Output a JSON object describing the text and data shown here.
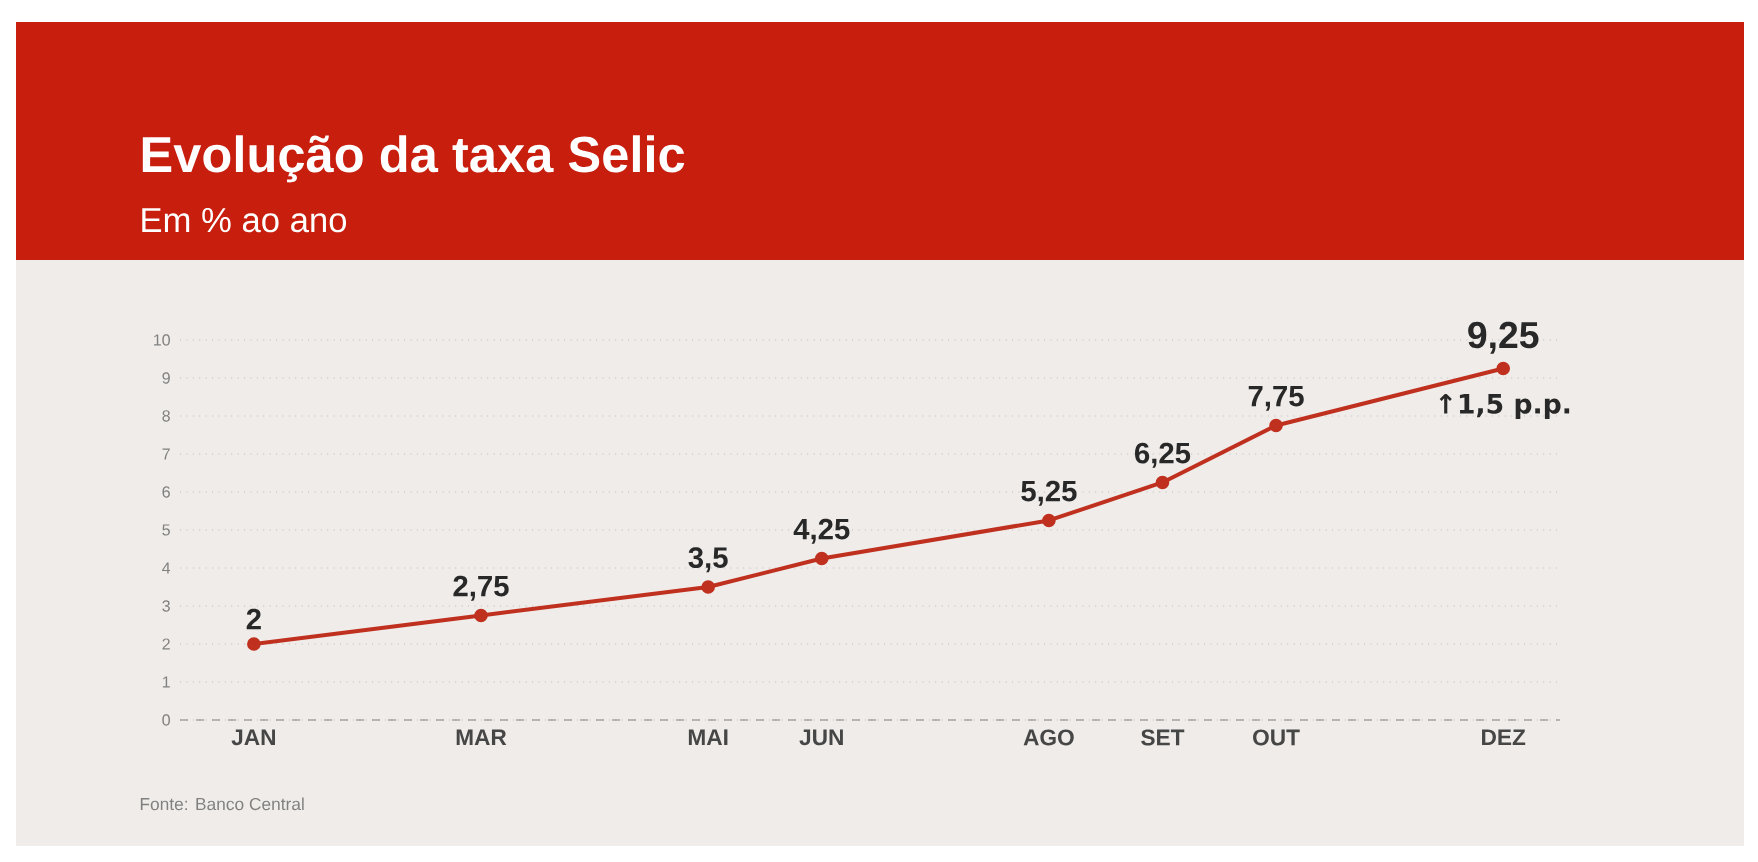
{
  "chart_data": {
    "type": "line",
    "title": "Evolução da taxa Selic",
    "subtitle": "Em % ao ano",
    "categories": [
      "JAN",
      null,
      "MAR",
      null,
      "MAI",
      "JUN",
      null,
      "AGO",
      "SET",
      "OUT",
      null,
      "DEZ"
    ],
    "series": [
      {
        "color": "#c0301f",
        "values": [
          2,
          null,
          2.75,
          null,
          3.5,
          4.25,
          null,
          5.25,
          6.25,
          7.75,
          null,
          9.25
        ],
        "value_labels": [
          "2",
          null,
          "2,75",
          null,
          "3,5",
          "4,25",
          null,
          "5,25",
          "6,25",
          "7,75",
          null,
          "9,25"
        ]
      }
    ],
    "ylim": [
      0,
      10
    ],
    "yticks": [
      0,
      1,
      2,
      3,
      4,
      5,
      6,
      7,
      8,
      9,
      10
    ],
    "grid": "y",
    "marker": "circle",
    "line_style": "solid",
    "annotations": [
      "↑1,5 p.p.",
      "Fonte: Banco Central"
    ]
  }
}
